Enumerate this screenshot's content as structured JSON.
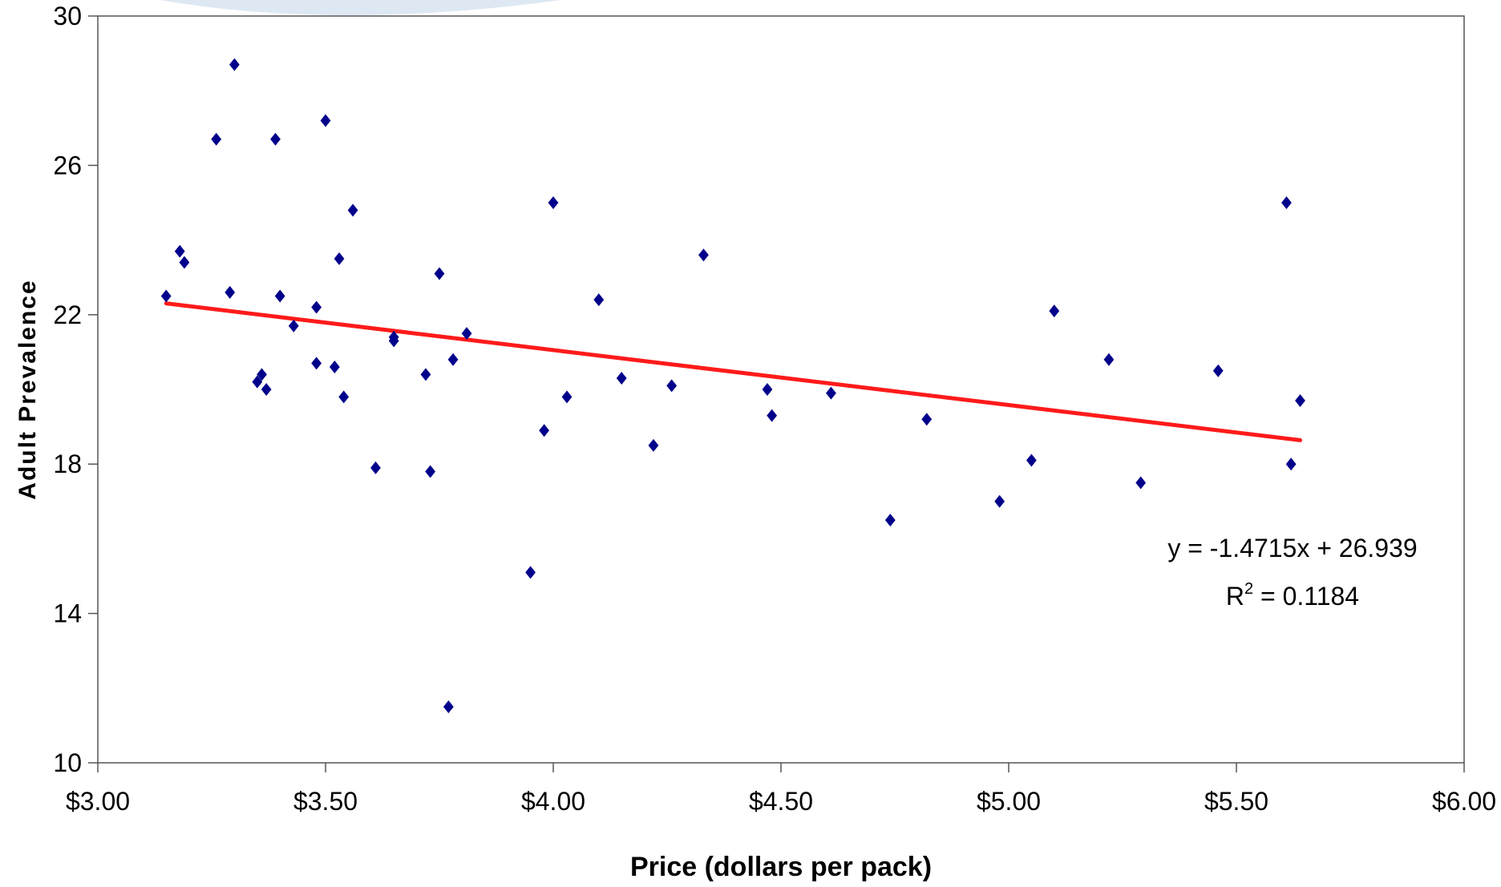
{
  "chart_data": {
    "type": "scatter",
    "title": "",
    "xlabel": "Price (dollars per pack)",
    "ylabel": "Adult Prevalence",
    "xlim": [
      3.0,
      6.0
    ],
    "ylim": [
      10,
      30
    ],
    "x_ticks": [
      3.0,
      3.5,
      4.0,
      4.5,
      5.0,
      5.5,
      6.0
    ],
    "x_tick_labels": [
      "$3.00",
      "$3.50",
      "$4.00",
      "$4.50",
      "$5.00",
      "$5.50",
      "$6.00"
    ],
    "y_ticks": [
      10,
      14,
      18,
      22,
      26,
      30
    ],
    "y_tick_labels": [
      "10",
      "14",
      "18",
      "22",
      "26",
      "30"
    ],
    "grid": false,
    "legend": "none",
    "marker": "diamond",
    "marker_color": "#00008B",
    "trendline_color": "#FF1A1A",
    "series": [
      {
        "points": [
          [
            3.15,
            22.5
          ],
          [
            3.18,
            23.7
          ],
          [
            3.19,
            23.4
          ],
          [
            3.26,
            26.7
          ],
          [
            3.29,
            22.6
          ],
          [
            3.3,
            28.7
          ],
          [
            3.35,
            20.2
          ],
          [
            3.36,
            20.4
          ],
          [
            3.37,
            20.0
          ],
          [
            3.39,
            26.7
          ],
          [
            3.4,
            22.5
          ],
          [
            3.43,
            21.7
          ],
          [
            3.48,
            22.2
          ],
          [
            3.48,
            20.7
          ],
          [
            3.5,
            27.2
          ],
          [
            3.52,
            20.6
          ],
          [
            3.53,
            23.5
          ],
          [
            3.54,
            19.8
          ],
          [
            3.56,
            24.8
          ],
          [
            3.61,
            17.9
          ],
          [
            3.65,
            21.4
          ],
          [
            3.65,
            21.3
          ],
          [
            3.72,
            20.4
          ],
          [
            3.73,
            17.8
          ],
          [
            3.75,
            23.1
          ],
          [
            3.77,
            11.5
          ],
          [
            3.78,
            20.8
          ],
          [
            3.81,
            21.5
          ],
          [
            3.95,
            15.1
          ],
          [
            3.98,
            18.9
          ],
          [
            4.0,
            25.0
          ],
          [
            4.03,
            19.8
          ],
          [
            4.1,
            22.4
          ],
          [
            4.15,
            20.3
          ],
          [
            4.22,
            18.5
          ],
          [
            4.26,
            20.1
          ],
          [
            4.33,
            23.6
          ],
          [
            4.47,
            20.0
          ],
          [
            4.48,
            19.3
          ],
          [
            4.61,
            19.9
          ],
          [
            4.74,
            16.5
          ],
          [
            4.82,
            19.2
          ],
          [
            4.98,
            17.0
          ],
          [
            5.05,
            18.1
          ],
          [
            5.1,
            22.1
          ],
          [
            5.22,
            20.8
          ],
          [
            5.29,
            17.5
          ],
          [
            5.46,
            20.5
          ],
          [
            5.61,
            25.0
          ],
          [
            5.62,
            18.0
          ],
          [
            5.64,
            19.7
          ]
        ]
      }
    ],
    "trendline": {
      "type": "linear",
      "slope": -1.4715,
      "intercept": 26.939,
      "equation_label": "y = -1.4715x + 26.939",
      "r2_prefix": "R",
      "r2_exponent": "2",
      "r2_value": " = 0.1184"
    }
  }
}
